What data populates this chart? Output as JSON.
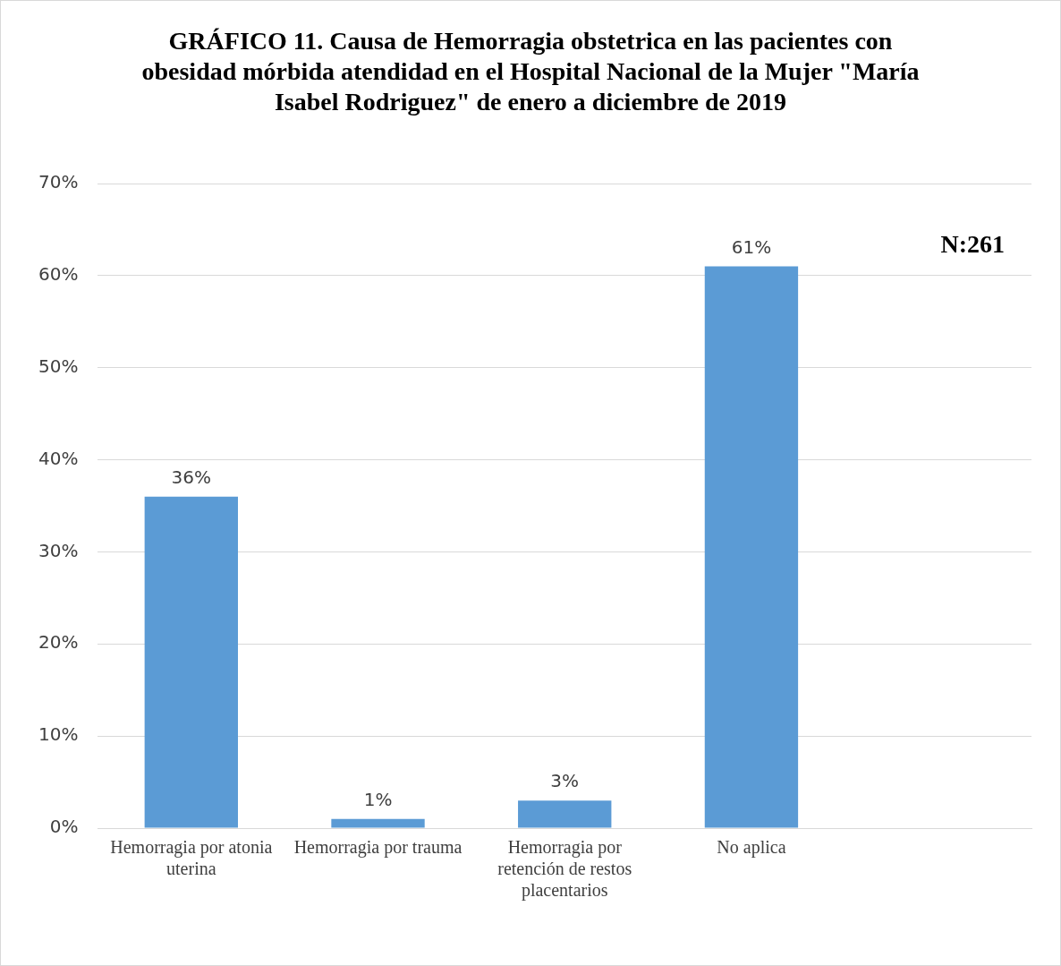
{
  "chart_data": {
    "type": "bar",
    "title": "GRÁFICO 11. Causa de Hemorragia obstetrica en las pacientes con obesidad mórbida atendidad en el Hospital Nacional de la Mujer \"María Isabel Rodriguez\" de enero a diciembre de 2019",
    "categories": [
      "Hemorragia por atonia uterina",
      "Hemorragia por trauma",
      "Hemorragia por retención de restos placentarios",
      "No aplica",
      null
    ],
    "values": [
      36,
      1,
      3,
      61,
      null
    ],
    "value_labels": [
      "36%",
      "1%",
      "3%",
      "61%",
      null
    ],
    "color": "#5b9bd5",
    "ylim": [
      0,
      70
    ],
    "yticks": [
      {
        "value": 0,
        "label": "0%"
      },
      {
        "value": 10,
        "label": "10%"
      },
      {
        "value": 20,
        "label": "20%"
      },
      {
        "value": 30,
        "label": "30%"
      },
      {
        "value": 40,
        "label": "40%"
      },
      {
        "value": 50,
        "label": "50%"
      },
      {
        "value": 60,
        "label": "60%"
      },
      {
        "value": 70,
        "label": "70%"
      }
    ],
    "grid": "y",
    "legend": false,
    "annotations": [
      "N:261"
    ]
  }
}
